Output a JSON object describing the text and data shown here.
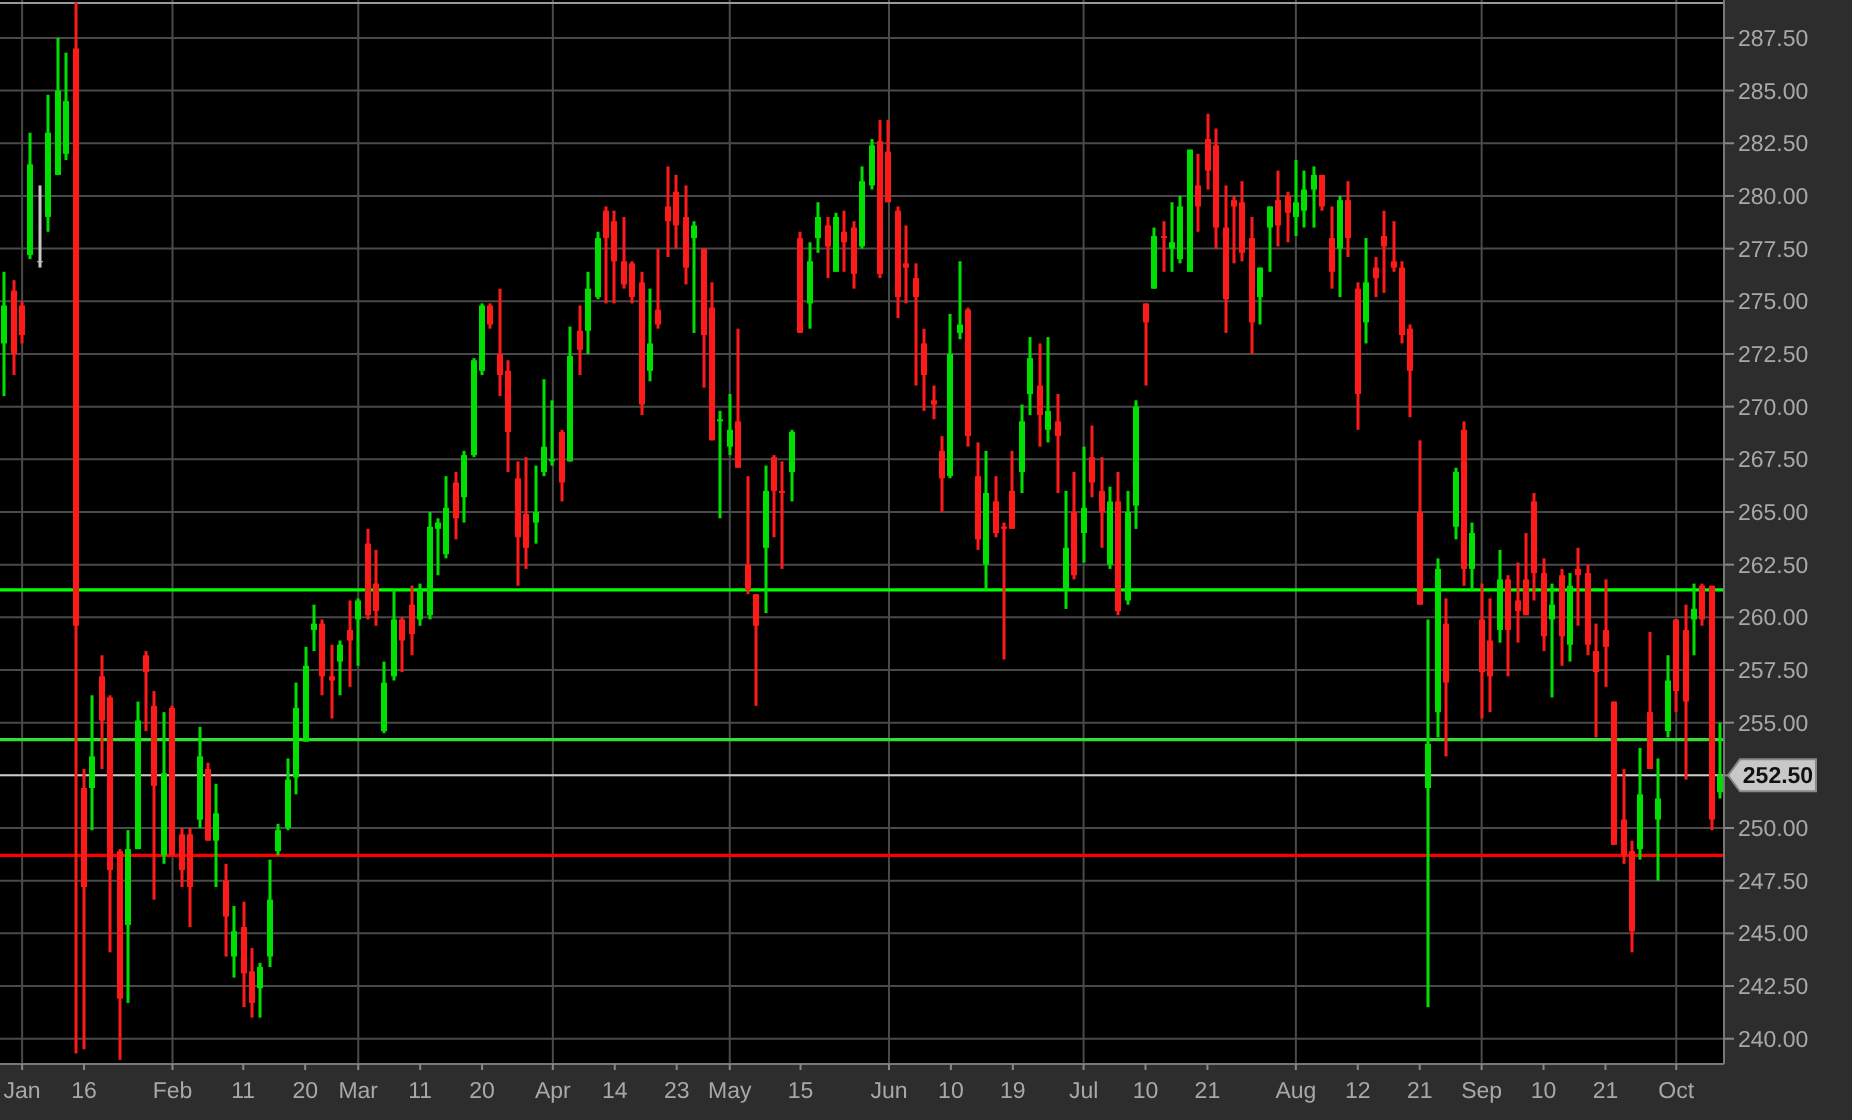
{
  "chart_data": {
    "type": "candlestick",
    "categories": [
      null,
      null,
      "Jan",
      null,
      null,
      null,
      null,
      null,
      null,
      "16",
      null,
      null,
      null,
      null,
      null,
      null,
      null,
      null,
      null,
      "Feb",
      null,
      null,
      null,
      null,
      null,
      null,
      null,
      "11",
      null,
      null,
      null,
      null,
      null,
      null,
      "20",
      null,
      null,
      null,
      null,
      null,
      "Mar",
      null,
      null,
      null,
      null,
      null,
      null,
      "11",
      null,
      null,
      null,
      null,
      null,
      null,
      "20",
      null,
      null,
      null,
      null,
      null,
      null,
      null,
      "Apr",
      null,
      null,
      null,
      null,
      null,
      null,
      "14",
      null,
      null,
      null,
      null,
      null,
      null,
      "23",
      null,
      null,
      null,
      null,
      null,
      "May",
      null,
      null,
      null,
      null,
      null,
      null,
      null,
      "15",
      null,
      null,
      null,
      null,
      null,
      null,
      null,
      null,
      null,
      "Jun",
      null,
      null,
      null,
      null,
      null,
      null,
      "10",
      null,
      null,
      null,
      null,
      null,
      null,
      "19",
      null,
      null,
      null,
      null,
      null,
      null,
      null,
      "Jul",
      null,
      null,
      null,
      null,
      null,
      null,
      "10",
      null,
      null,
      null,
      null,
      null,
      null,
      "21",
      null,
      null,
      null,
      null,
      null,
      null,
      null,
      null,
      null,
      "Aug",
      null,
      null,
      null,
      null,
      null,
      null,
      "12",
      null,
      null,
      null,
      null,
      null,
      null,
      "21",
      null,
      null,
      null,
      null,
      null,
      null,
      "Sep",
      null,
      null,
      null,
      null,
      null,
      null,
      "10",
      null,
      null,
      null,
      null,
      null,
      null,
      "21",
      null,
      null,
      null,
      null,
      null,
      null,
      null,
      "Oct",
      null,
      null,
      null,
      null,
      null
    ],
    "ohlc": [
      [
        273,
        276.4,
        270.5,
        274.8
      ],
      [
        275.5,
        276,
        271.5,
        272.5
      ],
      [
        274.8,
        275,
        273,
        273.4
      ],
      [
        277.2,
        283,
        277,
        281.5
      ],
      [
        276.9,
        280.5,
        276.6,
        276.9
      ],
      [
        279,
        284.8,
        278.3,
        283
      ],
      [
        281,
        287.5,
        281,
        285
      ],
      [
        282,
        286.8,
        281.7,
        284.5
      ],
      [
        287,
        289.2,
        239.3,
        259.6
      ],
      [
        251.9,
        252.8,
        239.5,
        247.2
      ],
      [
        251.9,
        256.3,
        249.9,
        253.4
      ],
      [
        257.2,
        258.2,
        252.8,
        255.1
      ],
      [
        256.2,
        256.3,
        244.1,
        248
      ],
      [
        248.9,
        249,
        239,
        241.9
      ],
      [
        245.4,
        249.9,
        241.7,
        249
      ],
      [
        249,
        256,
        249,
        255.1
      ],
      [
        258.2,
        258.4,
        254.6,
        257.4
      ],
      [
        255.8,
        256.5,
        246.6,
        252
      ],
      [
        248.7,
        255.5,
        248.3,
        252.6
      ],
      [
        255.7,
        255.8,
        248.7,
        248.7
      ],
      [
        249.7,
        250,
        247.2,
        248
      ],
      [
        249.7,
        250,
        245.3,
        247.2
      ],
      [
        250.4,
        254.8,
        250,
        253.4
      ],
      [
        252.8,
        253.1,
        249.4,
        249.4
      ],
      [
        249.4,
        252.1,
        247.2,
        250.7
      ],
      [
        247.5,
        248.3,
        243.9,
        245.8
      ],
      [
        243.9,
        246.3,
        242.9,
        245.1
      ],
      [
        245.3,
        246.5,
        241.5,
        243.1
      ],
      [
        243.2,
        244.3,
        241,
        241.7
      ],
      [
        242.4,
        243.6,
        241,
        243.4
      ],
      [
        243.9,
        248.5,
        243.4,
        246.6
      ],
      [
        248.9,
        250.2,
        248.7,
        249.9
      ],
      [
        250,
        253.3,
        249.9,
        252.3
      ],
      [
        252.4,
        256.9,
        251.6,
        255.7
      ],
      [
        254.1,
        258.6,
        254.1,
        257.7
      ],
      [
        259.4,
        260.6,
        258.4,
        259.7
      ],
      [
        259.7,
        259.9,
        256.3,
        257.2
      ],
      [
        257.2,
        258.7,
        255.2,
        257
      ],
      [
        257.9,
        258.9,
        256.3,
        258.7
      ],
      [
        259.4,
        260.8,
        256.7,
        258.9
      ],
      [
        259.9,
        260.9,
        257.7,
        260.8
      ],
      [
        263.5,
        264.2,
        259.9,
        260.1
      ],
      [
        261.6,
        263.2,
        259.6,
        260.3
      ],
      [
        254.6,
        257.9,
        254.5,
        256.9
      ],
      [
        257.2,
        261.3,
        257,
        259.9
      ],
      [
        259.9,
        260,
        257.4,
        258.9
      ],
      [
        260.6,
        261.5,
        258.2,
        259.2
      ],
      [
        259.9,
        261.6,
        259.6,
        261.3
      ],
      [
        260.1,
        265,
        259.9,
        264.3
      ],
      [
        264.2,
        264.7,
        262,
        264.5
      ],
      [
        263,
        266.7,
        262.8,
        265.2
      ],
      [
        266.4,
        266.9,
        263.7,
        264.7
      ],
      [
        265.7,
        267.9,
        264.5,
        267.7
      ],
      [
        267.7,
        272.3,
        267.6,
        272.2
      ],
      [
        271.7,
        274.9,
        271.5,
        274.8
      ],
      [
        274.8,
        274.9,
        273.7,
        273.9
      ],
      [
        272.5,
        275.6,
        270.5,
        271.5
      ],
      [
        271.7,
        272.2,
        266.9,
        268.8
      ],
      [
        266.6,
        267.4,
        261.5,
        263.8
      ],
      [
        264.9,
        267.6,
        262.3,
        263.3
      ],
      [
        264.5,
        267.2,
        263.5,
        265
      ],
      [
        266.9,
        271.3,
        266.7,
        268.1
      ],
      [
        267.4,
        270.3,
        267.2,
        267.5
      ],
      [
        268.8,
        268.9,
        265.5,
        266.4
      ],
      [
        267.4,
        273.8,
        267.4,
        272.4
      ],
      [
        273.6,
        274.8,
        271.5,
        272.7
      ],
      [
        273.6,
        276.4,
        272.5,
        275.6
      ],
      [
        275.2,
        278.3,
        275.1,
        278
      ],
      [
        279.3,
        279.5,
        274.9,
        278
      ],
      [
        278.8,
        279.3,
        274.9,
        276.9
      ],
      [
        276.9,
        279,
        275.6,
        275.8
      ],
      [
        276.8,
        276.9,
        274.9,
        275.2
      ],
      [
        275.9,
        276.4,
        269.6,
        270.1
      ],
      [
        271.7,
        275.6,
        271.2,
        273
      ],
      [
        274.6,
        277.5,
        273.7,
        273.9
      ],
      [
        279.5,
        281.4,
        277.1,
        278.8
      ],
      [
        280.2,
        281,
        277.5,
        278.6
      ],
      [
        279,
        280.5,
        275.8,
        276.6
      ],
      [
        278,
        278.8,
        273.5,
        278.6
      ],
      [
        277.5,
        277.5,
        270.9,
        273.4
      ],
      [
        274.7,
        275.9,
        268.4,
        268.4
      ],
      [
        269.3,
        269.8,
        264.7,
        269.4
      ],
      [
        268.1,
        270.6,
        267.7,
        268.9
      ],
      [
        269.3,
        273.7,
        267.1,
        267.1
      ],
      [
        262.5,
        266.7,
        261.1,
        261.3
      ],
      [
        261.1,
        261.1,
        255.8,
        259.6
      ],
      [
        263.3,
        267.2,
        260.2,
        266
      ],
      [
        267.6,
        267.7,
        263.8,
        266
      ],
      [
        266,
        267.4,
        262.3,
        265.9
      ],
      [
        266.9,
        268.9,
        265.5,
        268.8
      ],
      [
        278,
        278.3,
        273.5,
        273.5
      ],
      [
        274.9,
        277.8,
        273.7,
        276.9
      ],
      [
        278,
        279.7,
        277.3,
        279
      ],
      [
        278.6,
        279,
        276.1,
        277.6
      ],
      [
        276.4,
        279.2,
        276.4,
        279
      ],
      [
        278.3,
        279.3,
        276.4,
        277.8
      ],
      [
        278.5,
        278.8,
        275.6,
        276.3
      ],
      [
        277.6,
        281.4,
        277.5,
        280.7
      ],
      [
        280.5,
        282.7,
        280.3,
        282.4
      ],
      [
        282.6,
        283.6,
        276.1,
        276.3
      ],
      [
        282.1,
        283.6,
        279.7,
        279.7
      ],
      [
        279.3,
        279.5,
        274.2,
        275.2
      ],
      [
        276.8,
        278.6,
        274.9,
        276.6
      ],
      [
        276.1,
        276.8,
        271,
        275.2
      ],
      [
        273,
        273.7,
        269.8,
        271.5
      ],
      [
        270.3,
        271,
        269.4,
        270.1
      ],
      [
        267.9,
        268.6,
        265,
        266.6
      ],
      [
        266.7,
        274.4,
        266.6,
        272.5
      ],
      [
        273.5,
        276.9,
        273.2,
        273.9
      ],
      [
        274.6,
        274.7,
        268.1,
        268.6
      ],
      [
        266.7,
        268.3,
        263.2,
        263.7
      ],
      [
        262.5,
        267.9,
        261.3,
        265.9
      ],
      [
        265.5,
        266.7,
        263.8,
        264
      ],
      [
        264.3,
        264.5,
        258,
        264.2
      ],
      [
        266,
        267.9,
        264.2,
        264.2
      ],
      [
        266.9,
        270.1,
        265.9,
        269.3
      ],
      [
        270.6,
        273.3,
        269.6,
        272.3
      ],
      [
        271,
        273,
        268.1,
        269.6
      ],
      [
        268.9,
        273.3,
        268.3,
        269.8
      ],
      [
        269.3,
        270.6,
        265.9,
        268.6
      ],
      [
        261.3,
        266,
        260.4,
        263.3
      ],
      [
        265,
        266.9,
        261.8,
        262
      ],
      [
        264,
        268.1,
        262.6,
        265.2
      ],
      [
        267.6,
        269.1,
        265.7,
        266.4
      ],
      [
        266,
        267.6,
        263.3,
        265
      ],
      [
        262.5,
        266.2,
        262.3,
        265.5
      ],
      [
        265.5,
        266.9,
        260.1,
        260.3
      ],
      [
        260.8,
        266,
        260.6,
        265
      ],
      [
        265.3,
        270.3,
        264.2,
        270
      ],
      [
        274.9,
        274.9,
        271,
        274
      ],
      [
        275.6,
        278.5,
        275.6,
        278.1
      ],
      [
        278.1,
        278.8,
        276.4,
        278
      ],
      [
        277.5,
        279.7,
        276.4,
        277.8
      ],
      [
        277,
        280,
        276.8,
        279.5
      ],
      [
        276.4,
        282.2,
        276.4,
        282.2
      ],
      [
        280.5,
        282,
        278.3,
        279.5
      ],
      [
        282.7,
        283.9,
        280.3,
        281.2
      ],
      [
        282.4,
        283.2,
        277.5,
        278.5
      ],
      [
        278.5,
        280.5,
        273.5,
        275.1
      ],
      [
        279.8,
        280,
        276.8,
        279.5
      ],
      [
        279.7,
        280.7,
        276.9,
        277.3
      ],
      [
        278,
        279,
        272.5,
        274
      ],
      [
        275.2,
        276.6,
        273.9,
        276.6
      ],
      [
        278.5,
        279.5,
        276.4,
        279.5
      ],
      [
        279.8,
        281.2,
        277.6,
        278.6
      ],
      [
        280,
        280.2,
        277.8,
        279.2
      ],
      [
        279,
        281.7,
        278.1,
        279.7
      ],
      [
        279.3,
        281.2,
        278.5,
        280.3
      ],
      [
        280.3,
        281.4,
        278.5,
        281
      ],
      [
        281,
        281,
        279.3,
        279.5
      ],
      [
        278,
        279.5,
        275.6,
        276.4
      ],
      [
        277.5,
        280,
        275.2,
        279.8
      ],
      [
        279.8,
        280.7,
        277.1,
        278
      ],
      [
        275.6,
        275.9,
        268.9,
        270.6
      ],
      [
        274,
        278,
        273,
        275.9
      ],
      [
        276.6,
        277.1,
        275.2,
        276.1
      ],
      [
        278.1,
        279.3,
        275.4,
        277.6
      ],
      [
        276.9,
        278.8,
        276.4,
        276.6
      ],
      [
        276.6,
        276.9,
        273,
        273.4
      ],
      [
        273.7,
        273.9,
        269.5,
        271.7
      ],
      [
        265,
        268.4,
        260.6,
        260.6
      ],
      [
        251.9,
        259.9,
        241.5,
        254
      ],
      [
        255.5,
        262.8,
        254.3,
        262.3
      ],
      [
        259.7,
        260.9,
        253.4,
        256.9
      ],
      [
        264.3,
        267.1,
        263.7,
        266.9
      ],
      [
        268.9,
        269.3,
        261.5,
        262.3
      ],
      [
        262.3,
        264.5,
        261.3,
        264
      ],
      [
        259.9,
        261.6,
        255.2,
        257.4
      ],
      [
        258.9,
        260.9,
        255.5,
        257.2
      ],
      [
        259.4,
        263.2,
        258.8,
        261.8
      ],
      [
        261.8,
        262,
        257.2,
        259.4
      ],
      [
        260.8,
        262.6,
        258.8,
        260.3
      ],
      [
        261.8,
        264,
        260.1,
        260.1
      ],
      [
        265.5,
        265.9,
        260.8,
        262.1
      ],
      [
        262.1,
        262.8,
        258.4,
        259.1
      ],
      [
        259.9,
        261.6,
        256.2,
        260.6
      ],
      [
        262,
        262.3,
        257.7,
        259.1
      ],
      [
        258.7,
        262.1,
        257.9,
        261.5
      ],
      [
        262.3,
        263.3,
        259.6,
        262
      ],
      [
        262.1,
        262.5,
        258.2,
        258.7
      ],
      [
        258.4,
        259.7,
        254.3,
        257.4
      ],
      [
        259.4,
        261.8,
        256.7,
        258.6
      ],
      [
        256,
        256,
        249.2,
        249.2
      ],
      [
        250.4,
        252.8,
        248.3,
        248.7
      ],
      [
        248.9,
        249.4,
        244.1,
        245.1
      ],
      [
        249,
        253.8,
        248.5,
        251.6
      ],
      [
        255.5,
        259.3,
        252.8,
        252.8
      ],
      [
        250.4,
        253.3,
        247.5,
        251.4
      ],
      [
        254.6,
        258.2,
        254.3,
        257
      ],
      [
        259.9,
        259.9,
        255.5,
        256.5
      ],
      [
        259.4,
        260.6,
        252.3,
        256
      ],
      [
        259.9,
        261.6,
        258.2,
        260.4
      ],
      [
        261.5,
        261.6,
        259.6,
        259.9
      ],
      [
        261.5,
        261.5,
        249.9,
        250.4
      ],
      [
        251.7,
        255,
        251.4,
        252.5
      ]
    ],
    "colors": [
      "#00e000",
      "#ff1a1a",
      "#ff1a1a",
      "#00e000",
      "#c8c8c8",
      "#00e000",
      "#00e000",
      "#00e000",
      "#ff1a1a",
      "#ff1a1a",
      "#00e000",
      "#ff1a1a",
      "#ff1a1a",
      "#ff1a1a",
      "#00e000",
      "#00e000",
      "#ff1a1a",
      "#ff1a1a",
      "#00e000",
      "#ff1a1a",
      "#ff1a1a",
      "#ff1a1a",
      "#00e000",
      "#ff1a1a",
      "#00e000",
      "#ff1a1a",
      "#00e000",
      "#ff1a1a",
      "#ff1a1a",
      "#00e000",
      "#00e000",
      "#00e000",
      "#00e000",
      "#00e000",
      "#00e000",
      "#00e000",
      "#ff1a1a",
      "#ff1a1a",
      "#00e000",
      "#ff1a1a",
      "#00e000",
      "#ff1a1a",
      "#ff1a1a",
      "#00e000",
      "#00e000",
      "#ff1a1a",
      "#ff1a1a",
      "#00e000",
      "#00e000",
      "#00e000",
      "#00e000",
      "#ff1a1a",
      "#00e000",
      "#00e000",
      "#00e000",
      "#ff1a1a",
      "#ff1a1a",
      "#ff1a1a",
      "#ff1a1a",
      "#ff1a1a",
      "#00e000",
      "#00e000",
      "#00e000",
      "#ff1a1a",
      "#00e000",
      "#ff1a1a",
      "#00e000",
      "#00e000",
      "#ff1a1a",
      "#ff1a1a",
      "#ff1a1a",
      "#ff1a1a",
      "#ff1a1a",
      "#00e000",
      "#ff1a1a",
      "#ff1a1a",
      "#ff1a1a",
      "#ff1a1a",
      "#00e000",
      "#ff1a1a",
      "#ff1a1a",
      "#00e000",
      "#00e000",
      "#ff1a1a",
      "#ff1a1a",
      "#ff1a1a",
      "#00e000",
      "#ff1a1a",
      "#ff1a1a",
      "#00e000",
      "#ff1a1a",
      "#00e000",
      "#00e000",
      "#ff1a1a",
      "#00e000",
      "#ff1a1a",
      "#ff1a1a",
      "#00e000",
      "#00e000",
      "#ff1a1a",
      "#ff1a1a",
      "#ff1a1a",
      "#ff1a1a",
      "#ff1a1a",
      "#ff1a1a",
      "#ff1a1a",
      "#ff1a1a",
      "#00e000",
      "#00e000",
      "#ff1a1a",
      "#ff1a1a",
      "#00e000",
      "#ff1a1a",
      "#ff1a1a",
      "#ff1a1a",
      "#00e000",
      "#00e000",
      "#ff1a1a",
      "#00e000",
      "#ff1a1a",
      "#00e000",
      "#ff1a1a",
      "#00e000",
      "#ff1a1a",
      "#ff1a1a",
      "#00e000",
      "#ff1a1a",
      "#00e000",
      "#00e000",
      "#ff1a1a",
      "#00e000",
      "#ff1a1a",
      "#00e000",
      "#00e000",
      "#00e000",
      "#ff1a1a",
      "#ff1a1a",
      "#ff1a1a",
      "#ff1a1a",
      "#ff1a1a",
      "#ff1a1a",
      "#ff1a1a",
      "#00e000",
      "#00e000",
      "#ff1a1a",
      "#ff1a1a",
      "#00e000",
      "#00e000",
      "#00e000",
      "#ff1a1a",
      "#ff1a1a",
      "#00e000",
      "#ff1a1a",
      "#ff1a1a",
      "#00e000",
      "#ff1a1a",
      "#ff1a1a",
      "#ff1a1a",
      "#ff1a1a",
      "#ff1a1a",
      "#ff1a1a",
      "#00e000",
      "#00e000",
      "#ff1a1a",
      "#00e000",
      "#ff1a1a",
      "#00e000",
      "#ff1a1a",
      "#ff1a1a",
      "#00e000",
      "#ff1a1a",
      "#ff1a1a",
      "#ff1a1a",
      "#ff1a1a",
      "#ff1a1a",
      "#00e000",
      "#ff1a1a",
      "#00e000",
      "#ff1a1a",
      "#ff1a1a",
      "#ff1a1a",
      "#ff1a1a",
      "#ff1a1a",
      "#ff1a1a",
      "#ff1a1a",
      "#00e000",
      "#ff1a1a",
      "#00e000",
      "#00e000",
      "#ff1a1a",
      "#ff1a1a",
      "#00e000",
      "#ff1a1a",
      "#ff1a1a",
      "#00e000"
    ],
    "ylim": [
      238.8,
      289.3
    ],
    "yticks": [
      {
        "value": 240,
        "label": "240.00"
      },
      {
        "value": 242.5,
        "label": "242.50"
      },
      {
        "value": 245,
        "label": "245.00"
      },
      {
        "value": 247.5,
        "label": "247.50"
      },
      {
        "value": 250,
        "label": "250.00"
      },
      {
        "value": 252.5,
        "label": null
      },
      {
        "value": 255,
        "label": "255.00"
      },
      {
        "value": 257.5,
        "label": "257.50"
      },
      {
        "value": 260,
        "label": "260.00"
      },
      {
        "value": 262.5,
        "label": "262.50"
      },
      {
        "value": 265,
        "label": "265.00"
      },
      {
        "value": 267.5,
        "label": "267.50"
      },
      {
        "value": 270,
        "label": "270.00"
      },
      {
        "value": 272.5,
        "label": "272.50"
      },
      {
        "value": 275,
        "label": "275.00"
      },
      {
        "value": 277.5,
        "label": "277.50"
      },
      {
        "value": 280,
        "label": "280.00"
      },
      {
        "value": 282.5,
        "label": "282.50"
      },
      {
        "value": 285,
        "label": "285.00"
      },
      {
        "value": 287.5,
        "label": "287.50"
      }
    ],
    "ref_lines": [
      {
        "axis": "y",
        "value": 261.3,
        "label": null,
        "color": "#00ff00"
      },
      {
        "axis": "y",
        "value": 248.7,
        "label": null,
        "color": "#ff0000"
      },
      {
        "axis": "y",
        "value": 254.2,
        "label": null,
        "color": "#33dd33"
      },
      {
        "axis": "y",
        "value": 252.5,
        "label": "252.50",
        "color": "#c8c8c8"
      }
    ],
    "grid": true
  }
}
